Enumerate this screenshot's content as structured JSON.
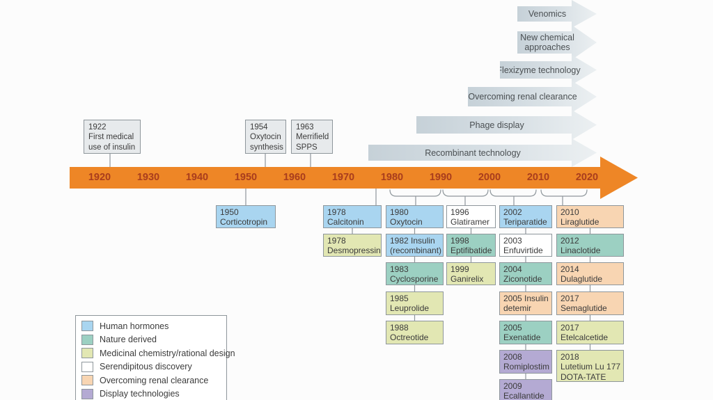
{
  "colors": {
    "human-hormones": "#a9d5f0",
    "nature-derived": "#9cd0c2",
    "medicinal-chemistry": "#e2e7b3",
    "serendipitous": "#ffffff",
    "renal-clearance": "#f8d5b2",
    "display-technologies": "#b4aad3",
    "timeline": "#ee8626",
    "year_text": "#a93d1d",
    "milestone_fill": "#e7eaec",
    "border": "#8e969b"
  },
  "tech_arrows": [
    {
      "label": "Venomics"
    },
    {
      "label": "New chemical approaches"
    },
    {
      "label": "Flexizyme technology"
    },
    {
      "label": "Overcoming renal clearance"
    },
    {
      "label": "Phage display"
    },
    {
      "label": "Recombinant technology"
    }
  ],
  "timeline": {
    "years": [
      "1920",
      "1930",
      "1940",
      "1950",
      "1960",
      "1970",
      "1980",
      "1990",
      "2000",
      "2010",
      "2020"
    ]
  },
  "milestones": [
    {
      "lines": [
        "1922",
        "First medical",
        "use of insulin"
      ]
    },
    {
      "lines": [
        "1954",
        "Oxytocin",
        "synthesis"
      ]
    },
    {
      "lines": [
        "1963",
        "Merrifield",
        "SPPS"
      ]
    }
  ],
  "columns": [
    {
      "boxes": [
        {
          "category": "human-hormones",
          "lines": [
            "1950",
            "Corticotropin"
          ]
        }
      ]
    },
    {
      "boxes": [
        {
          "category": "human-hormones",
          "lines": [
            "1978",
            "Calcitonin"
          ]
        },
        {
          "category": "medicinal-chemistry",
          "lines": [
            "1978",
            "Desmopressin"
          ]
        }
      ]
    },
    {
      "boxes": [
        {
          "category": "human-hormones",
          "lines": [
            "1980",
            "Oxytocin"
          ]
        },
        {
          "category": "human-hormones",
          "lines": [
            "1982 Insulin",
            "(recombinant)"
          ]
        },
        {
          "category": "nature-derived",
          "lines": [
            "1983",
            "Cyclosporine"
          ]
        },
        {
          "category": "medicinal-chemistry",
          "lines": [
            "1985",
            "Leuprolide"
          ]
        },
        {
          "category": "medicinal-chemistry",
          "lines": [
            "1988",
            "Octreotide"
          ]
        }
      ]
    },
    {
      "boxes": [
        {
          "category": "serendipitous",
          "lines": [
            "1996",
            "Glatiramer"
          ]
        },
        {
          "category": "nature-derived",
          "lines": [
            "1998",
            "Eptifibatide"
          ]
        },
        {
          "category": "medicinal-chemistry",
          "lines": [
            "1999",
            "Ganirelix"
          ]
        }
      ]
    },
    {
      "boxes": [
        {
          "category": "human-hormones",
          "lines": [
            "2002",
            "Teriparatide"
          ]
        },
        {
          "category": "serendipitous",
          "lines": [
            "2003",
            "Enfuvirtide"
          ]
        },
        {
          "category": "nature-derived",
          "lines": [
            "2004",
            "Ziconotide"
          ]
        },
        {
          "category": "renal-clearance",
          "lines": [
            "2005 Insulin",
            "detemir"
          ]
        },
        {
          "category": "nature-derived",
          "lines": [
            "2005",
            "Exenatide"
          ]
        },
        {
          "category": "display-technologies",
          "lines": [
            "2008",
            "Romiplostim"
          ]
        },
        {
          "category": "display-technologies",
          "lines": [
            "2009",
            "Ecallantide"
          ]
        }
      ]
    },
    {
      "boxes": [
        {
          "category": "renal-clearance",
          "lines": [
            "2010",
            "Liraglutide"
          ]
        },
        {
          "category": "nature-derived",
          "lines": [
            "2012",
            "Linaclotide"
          ]
        },
        {
          "category": "renal-clearance",
          "lines": [
            "2014",
            "Dulaglutide"
          ]
        },
        {
          "category": "renal-clearance",
          "lines": [
            "2017",
            "Semaglutide"
          ]
        },
        {
          "category": "medicinal-chemistry",
          "lines": [
            "2017",
            "Etelcalcetide"
          ]
        },
        {
          "category": "medicinal-chemistry",
          "lines": [
            "2018",
            "Lutetium Lu 177",
            "DOTA-TATE"
          ]
        }
      ]
    }
  ],
  "legend": {
    "items": [
      {
        "category": "human-hormones",
        "label": "Human hormones"
      },
      {
        "category": "nature-derived",
        "label": "Nature derived"
      },
      {
        "category": "medicinal-chemistry",
        "label": "Medicinal chemistry/rational design"
      },
      {
        "category": "serendipitous",
        "label": "Serendipitous discovery"
      },
      {
        "category": "renal-clearance",
        "label": "Overcoming renal clearance"
      },
      {
        "category": "display-technologies",
        "label": "Display technologies"
      }
    ]
  }
}
